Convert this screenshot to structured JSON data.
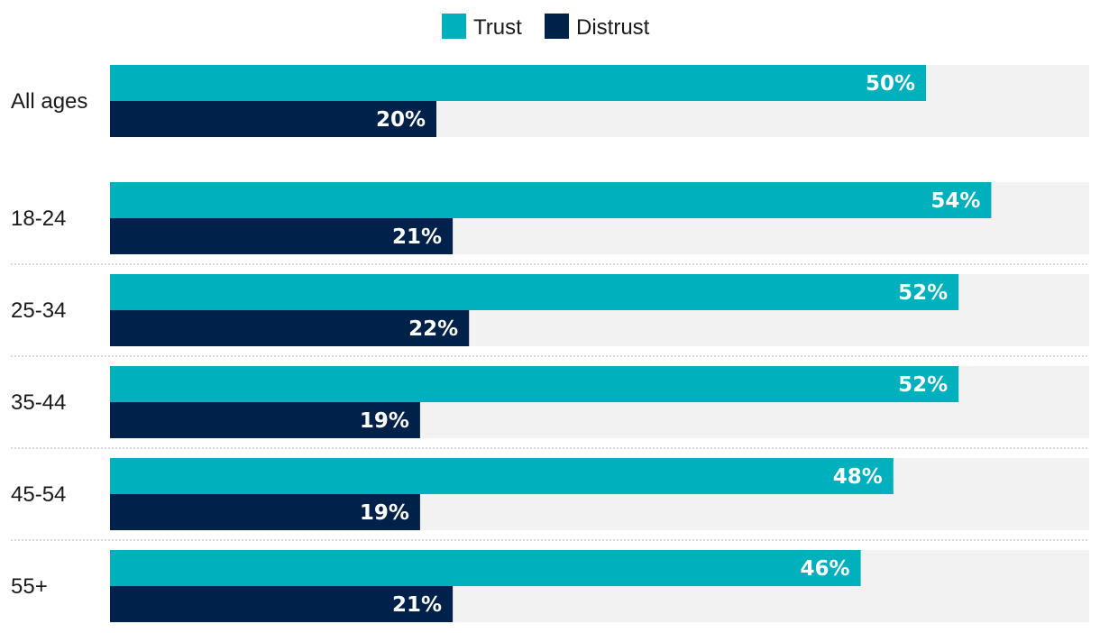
{
  "chart_data": {
    "type": "bar",
    "orientation": "horizontal",
    "title": "",
    "xlabel": "",
    "ylabel": "",
    "xlim": [
      0,
      60
    ],
    "grid": false,
    "legend_position": "top-center",
    "value_suffix": "%",
    "categories": [
      "All ages",
      "18-24",
      "25-34",
      "35-44",
      "45-54",
      "55+"
    ],
    "series": [
      {
        "name": "Trust",
        "color": "#00b0bd",
        "values": [
          50,
          54,
          52,
          52,
          48,
          46
        ]
      },
      {
        "name": "Distrust",
        "color": "#00214a",
        "values": [
          20,
          21,
          22,
          19,
          19,
          21
        ]
      }
    ],
    "track_color": "#f2f2f2",
    "separator_color": "#cccccc"
  }
}
